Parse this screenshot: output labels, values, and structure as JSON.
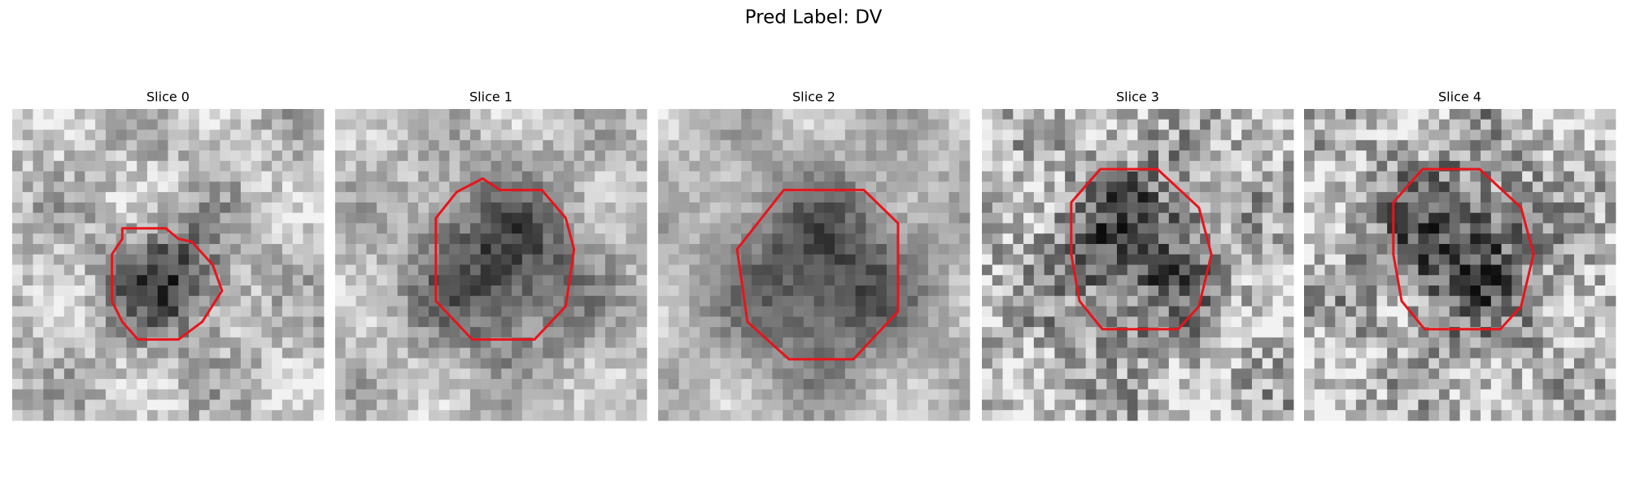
{
  "title": "Pred Label: DV",
  "panels": [
    {
      "title": "Slice 0"
    },
    {
      "title": "Slice 1"
    },
    {
      "title": "Slice 2"
    },
    {
      "title": "Slice 3"
    },
    {
      "title": "Slice 4"
    }
  ]
}
